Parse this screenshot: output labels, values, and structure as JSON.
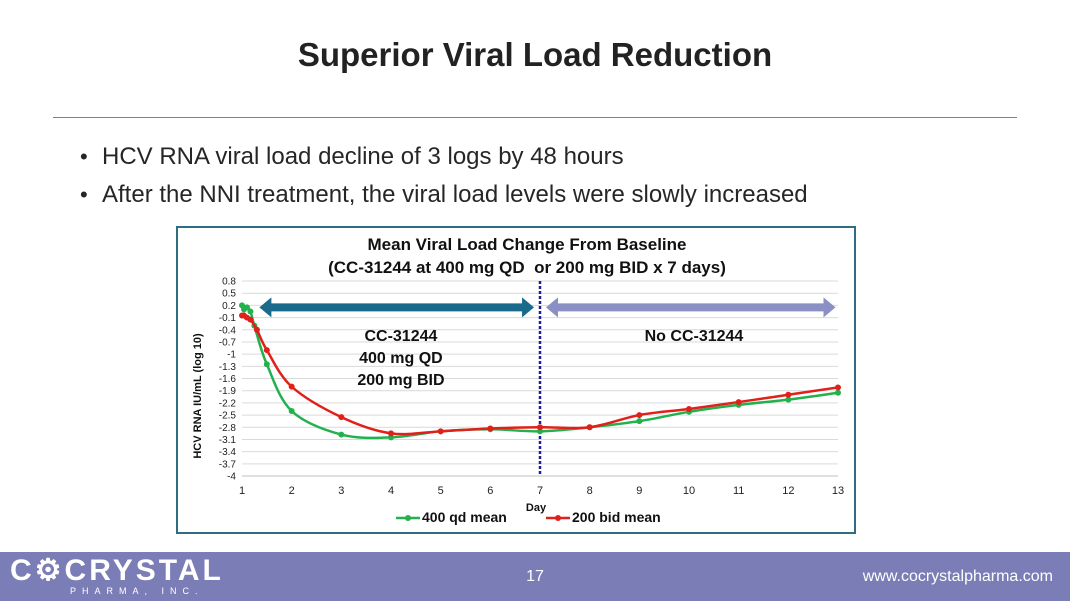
{
  "slide": {
    "title": "Superior Viral Load Reduction",
    "bullets": [
      "HCV RNA viral load decline of 3 logs by 48 hours",
      "After the NNI treatment, the viral load levels were slowly increased"
    ]
  },
  "footer": {
    "logo": "C⚙CRYSTAL",
    "logo_sub": "PHARMA, INC.",
    "page_number": "17",
    "website": "www.cocrystalpharma.com"
  },
  "colors": {
    "series_400qd": "#22b14c",
    "series_200bid": "#e0201b",
    "treatment_arrow": "#1a6a8c",
    "post_arrow": "#8a8fc4",
    "divider": "#1f1f9c",
    "footer_bg": "#7b7db7"
  },
  "chart_data": {
    "type": "line",
    "title": "Mean Viral Load Change From Baseline",
    "subtitle": "(CC-31244 at 400 mg QD  or 200 mg BID x 7 days)",
    "xlabel": "Day",
    "ylabel": "HCV RNA IU/mL (log 10)",
    "xlim": [
      1,
      13
    ],
    "ylim": [
      -4,
      0.8
    ],
    "x_ticks": [
      1,
      2,
      3,
      4,
      5,
      6,
      7,
      8,
      9,
      10,
      11,
      12,
      13
    ],
    "y_ticks": [
      "0.8",
      "0.5",
      "0.2",
      "-0.1",
      "-0.4",
      "-0.7",
      "-1",
      "-1.3",
      "-1.6",
      "-1.9",
      "-2.2",
      "-2.5",
      "-2.8",
      "-3.1",
      "-3.4",
      "-3.7",
      "-4"
    ],
    "grid": true,
    "legend_position": "bottom",
    "series": [
      {
        "name": "400 qd mean",
        "x": [
          1,
          1.04,
          1.1,
          1.17,
          1.25,
          1.5,
          2,
          3,
          4,
          5,
          6,
          7,
          8,
          9,
          10,
          11,
          12,
          13
        ],
        "y": [
          0.2,
          0.1,
          0.15,
          0.05,
          -0.3,
          -1.25,
          -2.4,
          -2.98,
          -3.05,
          -2.9,
          -2.85,
          -2.9,
          -2.8,
          -2.65,
          -2.42,
          -2.25,
          -2.12,
          -1.95
        ]
      },
      {
        "name": "200 bid mean",
        "x": [
          1,
          1.04,
          1.1,
          1.17,
          1.3,
          1.5,
          2,
          3,
          4,
          5,
          6,
          7,
          8,
          9,
          10,
          11,
          12,
          13
        ],
        "y": [
          -0.05,
          -0.05,
          -0.1,
          -0.15,
          -0.4,
          -0.9,
          -1.8,
          -2.55,
          -2.95,
          -2.9,
          -2.83,
          -2.8,
          -2.8,
          -2.5,
          -2.35,
          -2.18,
          -2.0,
          -1.82
        ]
      }
    ],
    "divider_day": 7,
    "annotations": {
      "treatment_label": [
        "CC-31244",
        "400 mg QD",
        "200 mg BID"
      ],
      "post_label": "No CC-31244"
    }
  }
}
